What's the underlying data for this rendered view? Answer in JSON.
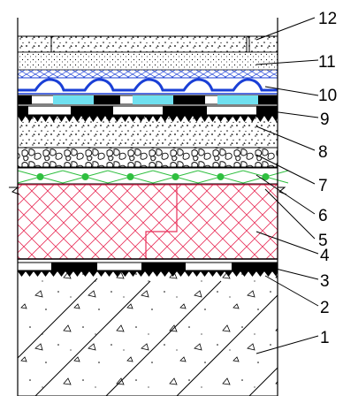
{
  "diagram": {
    "layers": [
      {
        "label": "1",
        "fill": "#ffffff"
      },
      {
        "label": "2",
        "fill": "#000000"
      },
      {
        "label": "3",
        "fill": "#000000"
      },
      {
        "label": "4",
        "fill": "#ffffff",
        "hatch_color": "#e8315a"
      },
      {
        "label": "5",
        "fill": "#ffffff"
      },
      {
        "label": "6",
        "fill": "#ffffff",
        "hatch_color": "#2fbf3f"
      },
      {
        "label": "7",
        "fill": "#ffffff"
      },
      {
        "label": "8",
        "fill": "#000000"
      },
      {
        "label": "9",
        "fill": "#000000"
      },
      {
        "label": "10",
        "fill": "#1a3fd6"
      },
      {
        "label": "11",
        "fill": "#ffffff",
        "hatch_color": "#1a3fd6"
      },
      {
        "label": "12",
        "fill": "#ffffff"
      }
    ]
  }
}
